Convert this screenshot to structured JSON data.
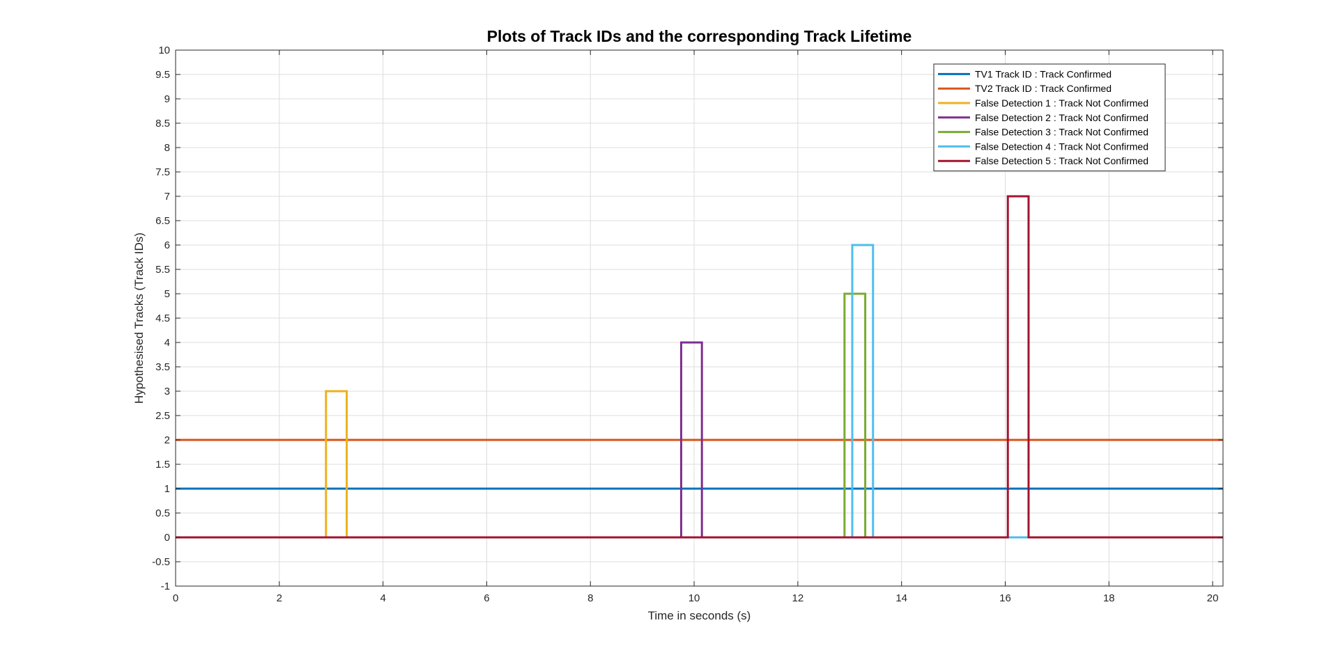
{
  "chart_data": {
    "type": "line",
    "title": "Plots of Track IDs and the corresponding Track Lifetime",
    "xlabel": "Time in seconds (s)",
    "ylabel": "Hypothesised Tracks (Track IDs)",
    "xlim": [
      0,
      20.2
    ],
    "ylim": [
      -1,
      10
    ],
    "xticks": [
      0,
      2,
      4,
      6,
      8,
      10,
      12,
      14,
      16,
      18,
      20
    ],
    "xtick_labels": [
      "0",
      "2",
      "4",
      "6",
      "8",
      "10",
      "12",
      "14",
      "16",
      "18",
      "20"
    ],
    "yticks": [
      -1,
      -0.5,
      0,
      0.5,
      1,
      1.5,
      2,
      2.5,
      3,
      3.5,
      4,
      4.5,
      5,
      5.5,
      6,
      6.5,
      7,
      7.5,
      8,
      8.5,
      9,
      9.5,
      10
    ],
    "ytick_labels": [
      "-1",
      "-0.5",
      "0",
      "0.5",
      "1",
      "1.5",
      "2",
      "2.5",
      "3",
      "3.5",
      "4",
      "4.5",
      "5",
      "5.5",
      "6",
      "6.5",
      "7",
      "7.5",
      "8",
      "8.5",
      "9",
      "9.5",
      "10"
    ],
    "grid": true,
    "legend_position": "top-right",
    "series": [
      {
        "name": "TV1 Track ID : Track Confirmed",
        "color": "#0072BD",
        "x": [
          0,
          20.2
        ],
        "y": [
          1,
          1
        ]
      },
      {
        "name": "TV2 Track ID : Track Confirmed",
        "color": "#D95319",
        "x": [
          0,
          20.2
        ],
        "y": [
          2,
          2
        ]
      },
      {
        "name": "False Detection 1 : Track Not Confirmed",
        "color": "#EDB120",
        "x": [
          0,
          2.9,
          2.9,
          3.3,
          3.3,
          20.2
        ],
        "y": [
          0,
          0,
          3,
          3,
          0,
          0
        ]
      },
      {
        "name": "False Detection 2 : Track Not Confirmed",
        "color": "#7E2F8E",
        "x": [
          0,
          9.75,
          9.75,
          10.15,
          10.15,
          20.2
        ],
        "y": [
          0,
          0,
          4,
          4,
          0,
          0
        ]
      },
      {
        "name": "False Detection 3 : Track Not Confirmed",
        "color": "#77AC30",
        "x": [
          0,
          12.9,
          12.9,
          13.3,
          13.3,
          20.2
        ],
        "y": [
          0,
          0,
          5,
          5,
          0,
          0
        ]
      },
      {
        "name": "False Detection 4 : Track Not Confirmed",
        "color": "#4DBEEE",
        "x": [
          0,
          13.05,
          13.05,
          13.45,
          13.45,
          20.2
        ],
        "y": [
          0,
          0,
          6,
          6,
          0,
          0
        ]
      },
      {
        "name": "False Detection 5 : Track Not Confirmed",
        "color": "#A2142F",
        "x": [
          0,
          16.05,
          16.05,
          16.45,
          16.45,
          20.2
        ],
        "y": [
          0,
          0,
          7,
          7,
          0,
          0
        ]
      }
    ]
  }
}
